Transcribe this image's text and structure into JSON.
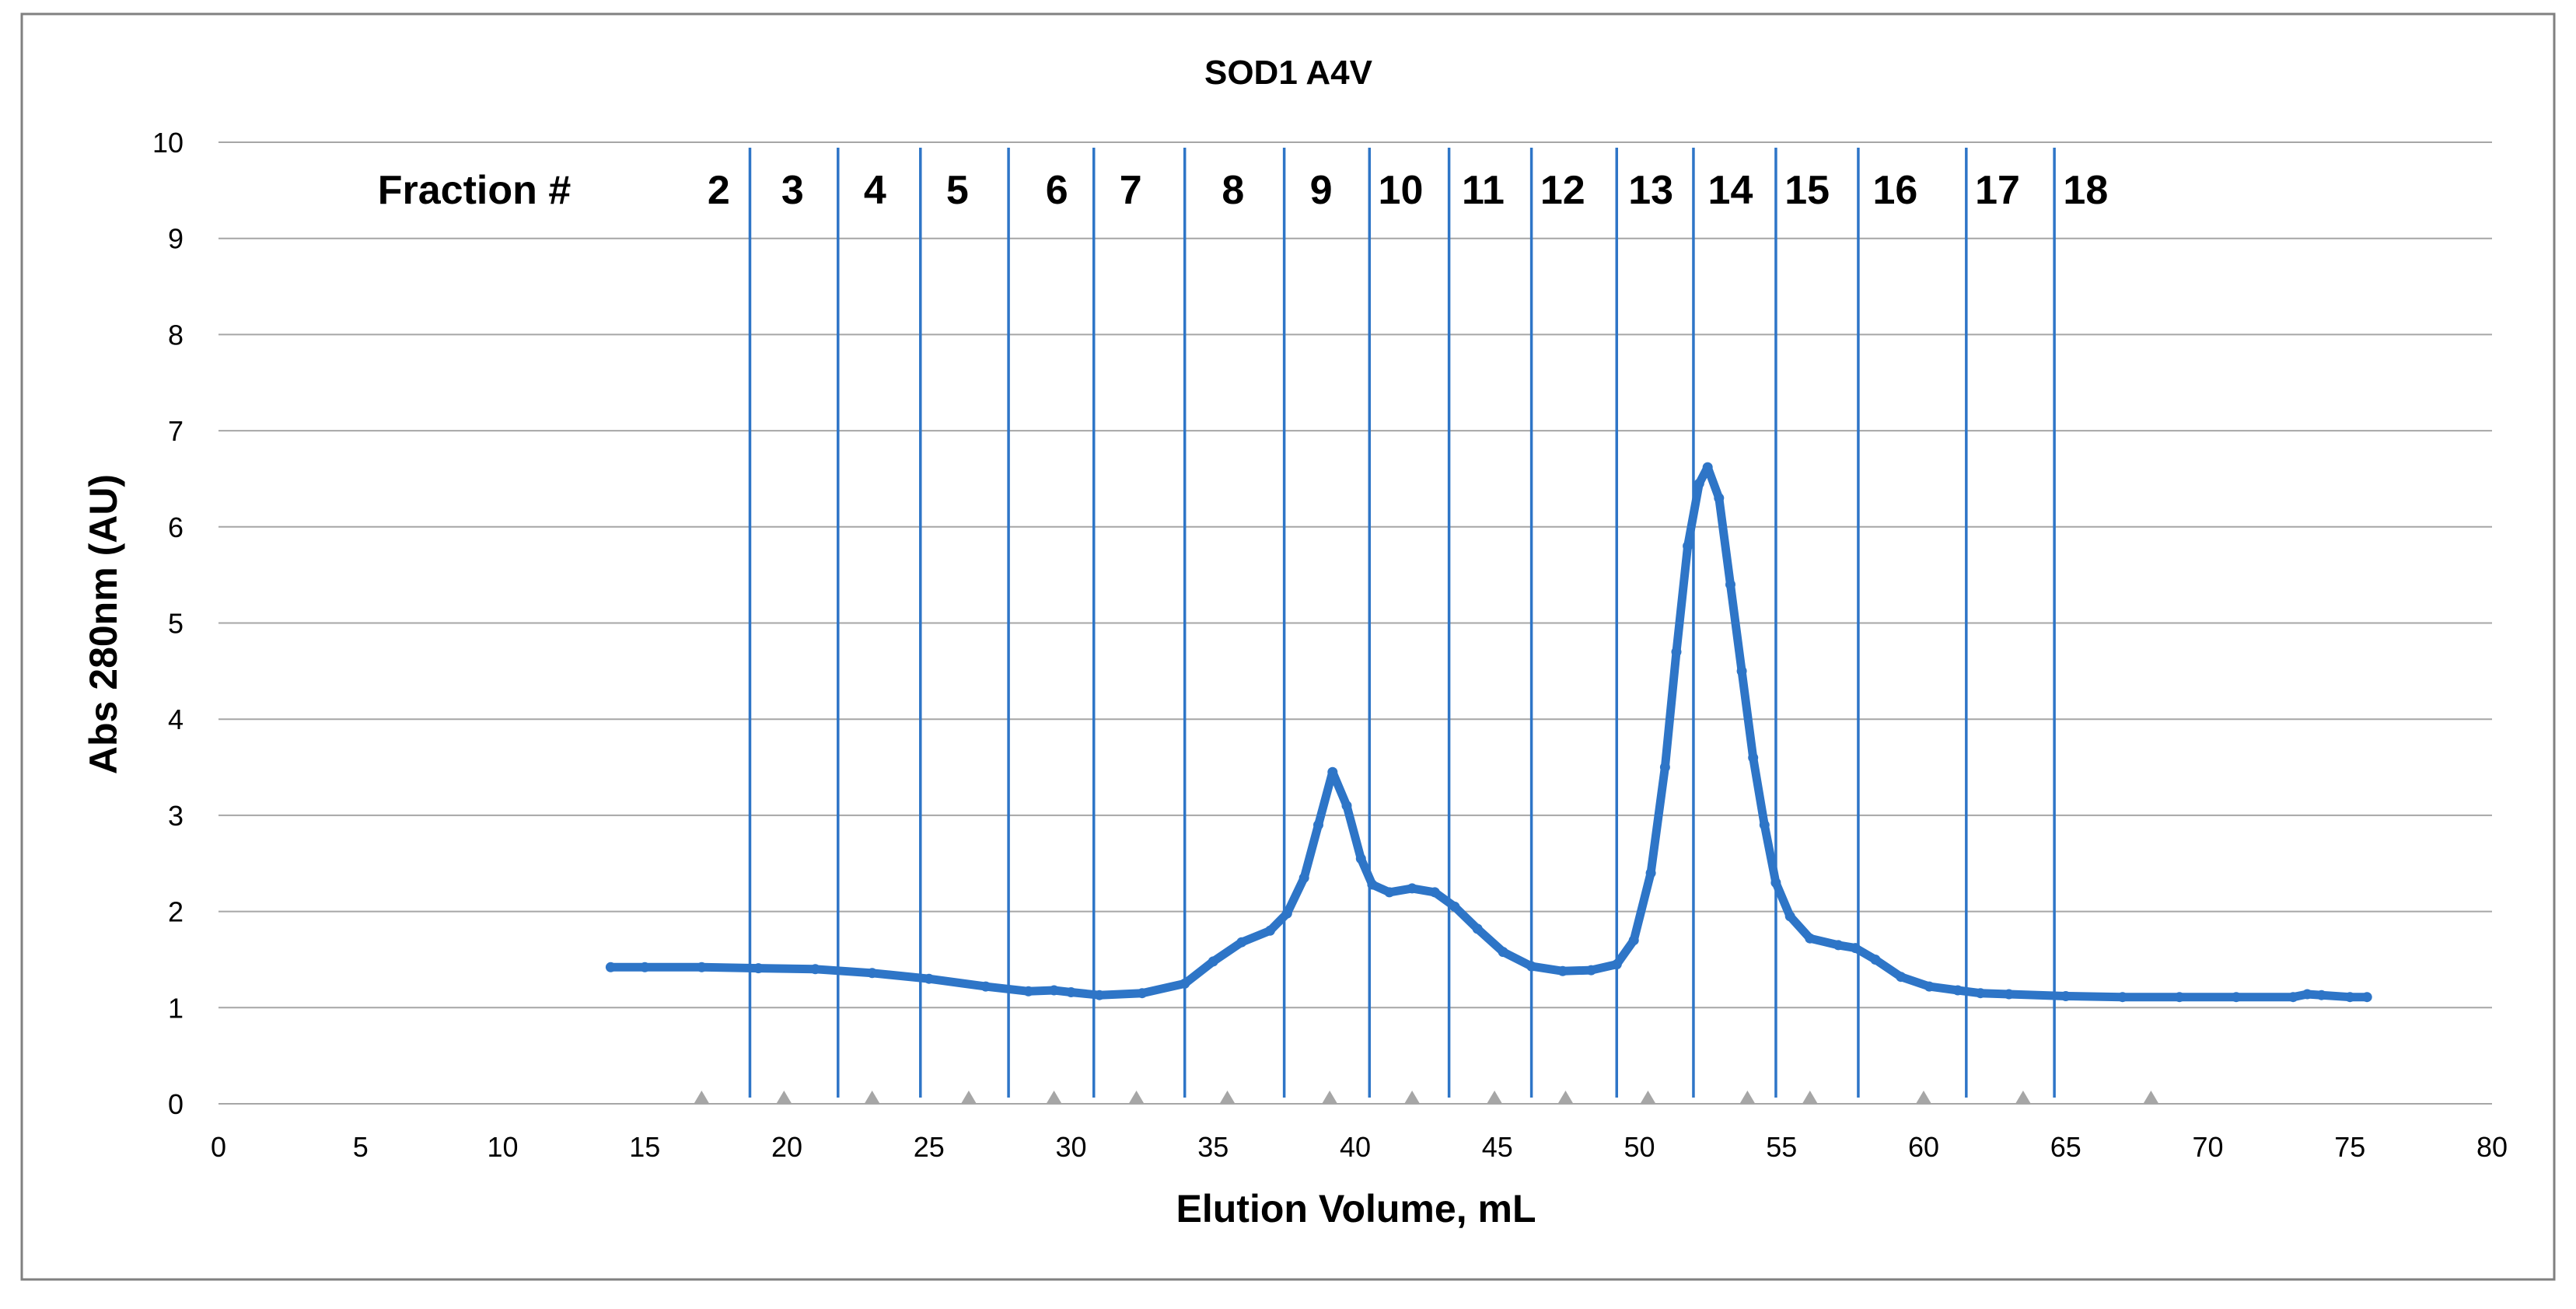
{
  "chart_data": {
    "type": "line",
    "title": "SOD1 A4V",
    "xlabel": "Elution Volume, mL",
    "ylabel": "Abs 280nm (AU)",
    "xlim": [
      0,
      80
    ],
    "ylim": [
      0,
      10
    ],
    "x_ticks": [
      0,
      5,
      10,
      15,
      20,
      25,
      30,
      35,
      40,
      45,
      50,
      55,
      60,
      65,
      70,
      75,
      80
    ],
    "y_ticks": [
      0,
      1,
      2,
      3,
      4,
      5,
      6,
      7,
      8,
      9,
      10
    ],
    "grid": "horizontal",
    "legend": "none",
    "colors": {
      "series": "#2E75C7",
      "fraction_lines": "#2E75C7",
      "grid": "#A6A6A6",
      "markers": "#A6A6A6"
    },
    "fraction_header": "Fraction #",
    "fractions": [
      {
        "label": "2",
        "x": 17.6
      },
      {
        "label": "3",
        "x": 20.2
      },
      {
        "label": "4",
        "x": 23.1
      },
      {
        "label": "5",
        "x": 26.0
      },
      {
        "label": "6",
        "x": 29.5
      },
      {
        "label": "7",
        "x": 32.1
      },
      {
        "label": "8",
        "x": 35.7
      },
      {
        "label": "9",
        "x": 38.8
      },
      {
        "label": "10",
        "x": 41.6
      },
      {
        "label": "11",
        "x": 44.5
      },
      {
        "label": "12",
        "x": 47.3
      },
      {
        "label": "13",
        "x": 50.4
      },
      {
        "label": "14",
        "x": 53.2
      },
      {
        "label": "15",
        "x": 55.9
      },
      {
        "label": "16",
        "x": 59.0
      },
      {
        "label": "17",
        "x": 62.6
      },
      {
        "label": "18",
        "x": 65.7
      }
    ],
    "fraction_boundaries": [
      18.7,
      21.8,
      24.7,
      27.8,
      30.8,
      34.0,
      37.5,
      40.5,
      43.3,
      46.2,
      49.2,
      51.9,
      54.8,
      57.7,
      61.5,
      64.6
    ],
    "fraction_markers": [
      17.0,
      19.9,
      23.0,
      26.4,
      29.4,
      32.3,
      35.5,
      39.1,
      42.0,
      44.9,
      47.4,
      50.3,
      53.8,
      56.0,
      60.0,
      63.5,
      68.0
    ],
    "series": [
      {
        "x": [
          13.8,
          15,
          17,
          19,
          21,
          23,
          25,
          27,
          28.5,
          29.4,
          30,
          31,
          32.5,
          34,
          35,
          36,
          37,
          37.6,
          38.2,
          38.7,
          39.2,
          39.7,
          40.2,
          40.6,
          41.2,
          42,
          42.8,
          43.5,
          44.3,
          45.2,
          46.2,
          47.3,
          48.3,
          49.2,
          49.8,
          50.4,
          50.9,
          51.3,
          51.7,
          52.1,
          52.4,
          52.8,
          53.2,
          53.6,
          54,
          54.4,
          54.8,
          55.3,
          56,
          57,
          57.6,
          58.3,
          59.2,
          60.2,
          61.2,
          62,
          63,
          65,
          67,
          69,
          71,
          73,
          73.5,
          74,
          75,
          75.6
        ],
        "y": [
          1.42,
          1.42,
          1.42,
          1.41,
          1.4,
          1.36,
          1.3,
          1.22,
          1.17,
          1.18,
          1.16,
          1.13,
          1.15,
          1.25,
          1.48,
          1.68,
          1.8,
          1.98,
          2.35,
          2.9,
          3.45,
          3.1,
          2.55,
          2.28,
          2.2,
          2.24,
          2.2,
          2.05,
          1.82,
          1.58,
          1.43,
          1.38,
          1.39,
          1.45,
          1.7,
          2.4,
          3.5,
          4.7,
          5.8,
          6.45,
          6.62,
          6.3,
          5.4,
          4.5,
          3.6,
          2.9,
          2.3,
          1.95,
          1.72,
          1.65,
          1.62,
          1.5,
          1.32,
          1.22,
          1.18,
          1.15,
          1.14,
          1.12,
          1.11,
          1.11,
          1.11,
          1.11,
          1.14,
          1.13,
          1.11,
          1.11
        ]
      }
    ]
  }
}
